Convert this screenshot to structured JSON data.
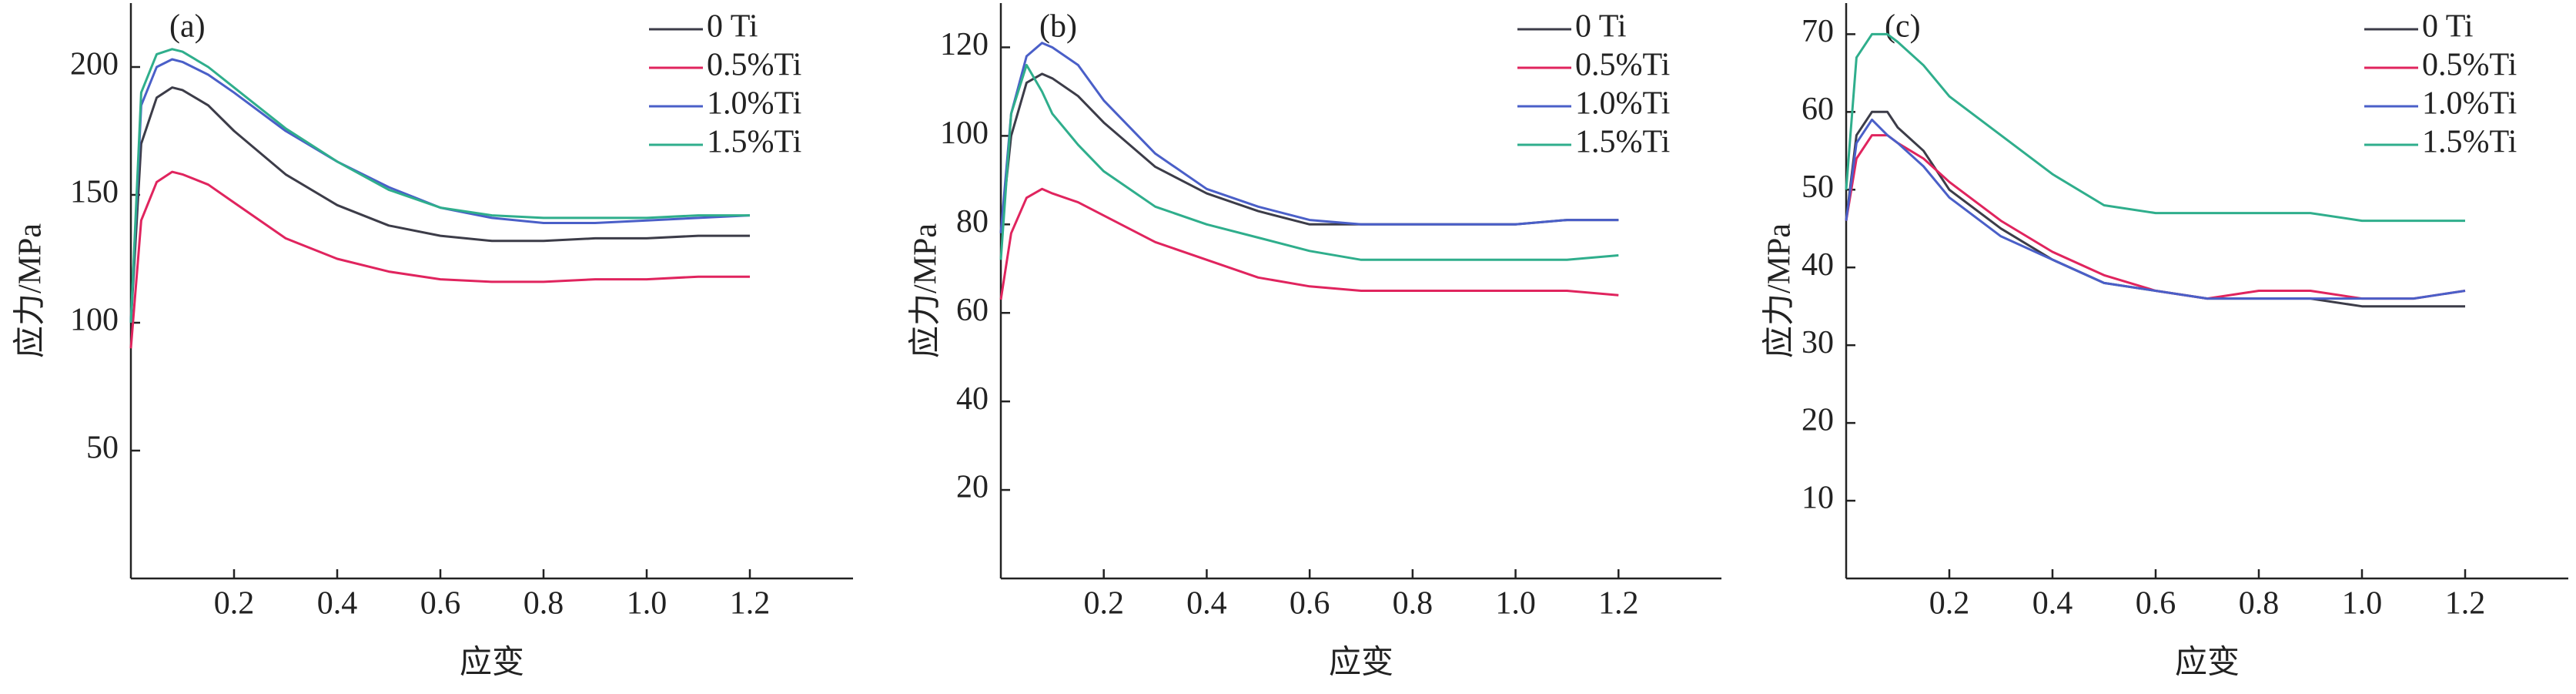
{
  "chart_data": [
    {
      "type": "line",
      "panel_label": "(a)",
      "x_label": "应变",
      "y_label": "应力/MPa",
      "x": [
        0,
        0.02,
        0.05,
        0.08,
        0.1,
        0.15,
        0.2,
        0.3,
        0.4,
        0.5,
        0.6,
        0.7,
        0.8,
        0.9,
        1.0,
        1.1,
        1.2
      ],
      "series": [
        {
          "name": "0 Ti",
          "color": "#3c3c48",
          "values": [
            100,
            170,
            188,
            192,
            191,
            185,
            175,
            158,
            146,
            138,
            134,
            132,
            132,
            133,
            133,
            134,
            134
          ]
        },
        {
          "name": "0.5%Ti",
          "color": "#e0245e",
          "values": [
            90,
            140,
            155,
            159,
            158,
            154,
            147,
            133,
            125,
            120,
            117,
            116,
            116,
            117,
            117,
            118,
            118
          ]
        },
        {
          "name": "1.0%Ti",
          "color": "#4a5fc8",
          "values": [
            100,
            185,
            200,
            203,
            202,
            197,
            190,
            175,
            163,
            153,
            145,
            141,
            139,
            139,
            140,
            141,
            142
          ]
        },
        {
          "name": "1.5%Ti",
          "color": "#2fae8c",
          "values": [
            100,
            190,
            205,
            207,
            206,
            200,
            192,
            176,
            163,
            152,
            145,
            142,
            141,
            141,
            141,
            142,
            142
          ]
        }
      ],
      "xlim": [
        0,
        1.4
      ],
      "xticks": [
        0.2,
        0.4,
        0.6,
        0.8,
        {
          "value": 1,
          "label": "1.0"
        },
        1.2
      ],
      "ylim": [
        0,
        225
      ],
      "yticks": [
        50,
        100,
        150,
        200
      ],
      "legend": "upper right"
    },
    {
      "type": "line",
      "panel_label": "(b)",
      "x_label": "应变",
      "y_label": "应力/MPa",
      "x": [
        0,
        0.02,
        0.05,
        0.08,
        0.1,
        0.15,
        0.2,
        0.3,
        0.4,
        0.5,
        0.6,
        0.7,
        0.8,
        0.9,
        1.0,
        1.1,
        1.2
      ],
      "series": [
        {
          "name": "0 Ti",
          "color": "#3c3c48",
          "values": [
            78,
            100,
            112,
            114,
            113,
            109,
            103,
            93,
            87,
            83,
            80,
            80,
            80,
            80,
            80,
            81,
            81
          ]
        },
        {
          "name": "0.5%Ti",
          "color": "#e0245e",
          "values": [
            63,
            78,
            86,
            88,
            87,
            85,
            82,
            76,
            72,
            68,
            66,
            65,
            65,
            65,
            65,
            65,
            64
          ]
        },
        {
          "name": "1.0%Ti",
          "color": "#4a5fc8",
          "values": [
            78,
            105,
            118,
            121,
            120,
            116,
            108,
            96,
            88,
            84,
            81,
            80,
            80,
            80,
            80,
            81,
            81
          ]
        },
        {
          "name": "1.5%Ti",
          "color": "#2fae8c",
          "values": [
            72,
            105,
            116,
            110,
            105,
            98,
            92,
            84,
            80,
            77,
            74,
            72,
            72,
            72,
            72,
            72,
            73
          ]
        }
      ],
      "xlim": [
        0,
        1.4
      ],
      "xticks": [
        0.2,
        0.4,
        0.6,
        0.8,
        {
          "value": 1,
          "label": "1.0"
        },
        1.2
      ],
      "ylim": [
        0,
        130
      ],
      "yticks": [
        20,
        40,
        60,
        80,
        100,
        120
      ],
      "legend": "upper right"
    },
    {
      "type": "line",
      "panel_label": "(c)",
      "x_label": "应变",
      "y_label": "应力/MPa",
      "x": [
        0,
        0.02,
        0.05,
        0.08,
        0.1,
        0.15,
        0.2,
        0.3,
        0.4,
        0.5,
        0.6,
        0.7,
        0.8,
        0.9,
        1.0,
        1.1,
        1.2
      ],
      "series": [
        {
          "name": "0 Ti",
          "color": "#3c3c48",
          "values": [
            46,
            57,
            60,
            60,
            58,
            55,
            50,
            45,
            41,
            38,
            37,
            36,
            36,
            36,
            35,
            35,
            35
          ]
        },
        {
          "name": "0.5%Ti",
          "color": "#e0245e",
          "values": [
            46,
            54,
            57,
            57,
            56,
            54,
            51,
            46,
            42,
            39,
            37,
            36,
            37,
            37,
            36,
            36,
            37
          ]
        },
        {
          "name": "1.0%Ti",
          "color": "#4a5fc8",
          "values": [
            46,
            56,
            59,
            57,
            56,
            53,
            49,
            44,
            41,
            38,
            37,
            36,
            36,
            36,
            36,
            36,
            37
          ]
        },
        {
          "name": "1.5%Ti",
          "color": "#2fae8c",
          "values": [
            50,
            67,
            70,
            70,
            69,
            66,
            62,
            57,
            52,
            48,
            47,
            47,
            47,
            47,
            46,
            46,
            46
          ]
        }
      ],
      "xlim": [
        0,
        1.4
      ],
      "xticks": [
        0.2,
        0.4,
        0.6,
        0.8,
        {
          "value": 1,
          "label": "1.0"
        },
        1.2
      ],
      "ylim": [
        0,
        74
      ],
      "yticks": [
        10,
        20,
        30,
        40,
        50,
        60,
        70
      ],
      "legend": "upper right"
    }
  ]
}
